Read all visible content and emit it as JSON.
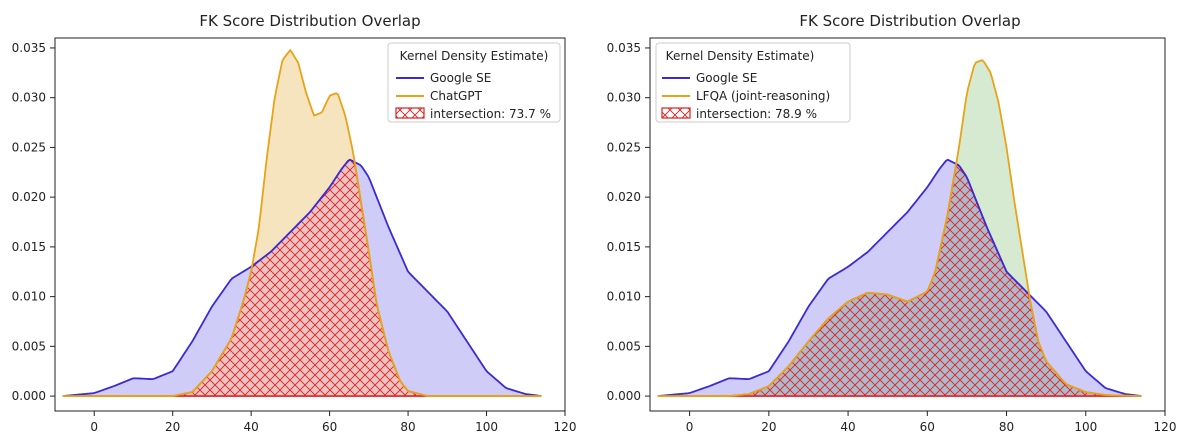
{
  "chart_data": [
    {
      "type": "area",
      "title": "FK Score Distribution Overlap",
      "xlabel": "",
      "ylabel": "",
      "xlim": [
        -10,
        120
      ],
      "ylim": [
        -0.0015,
        0.036
      ],
      "x_ticks": [
        0,
        20,
        40,
        60,
        80,
        100,
        120
      ],
      "y_ticks": [
        0.0,
        0.005,
        0.01,
        0.015,
        0.02,
        0.025,
        0.03,
        0.035
      ],
      "y_tick_labels": [
        "0.000",
        "0.005",
        "0.010",
        "0.015",
        "0.020",
        "0.025",
        "0.030",
        "0.035"
      ],
      "grid": false,
      "legend": {
        "title": "Kernel Density Estimate)",
        "placement": "top-right",
        "entries": [
          "Google SE",
          "ChatGPT",
          "intersection: 73.7 %"
        ]
      },
      "series": [
        {
          "name": "Google SE",
          "color": "#3a2ad8",
          "fill": "#c7c3f6",
          "x": [
            -8,
            0,
            5,
            10,
            15,
            20,
            25,
            30,
            35,
            40,
            45,
            50,
            55,
            60,
            63,
            65,
            68,
            70,
            75,
            80,
            85,
            90,
            95,
            100,
            105,
            110,
            114
          ],
          "y": [
            0.0,
            0.0003,
            0.001,
            0.0018,
            0.0017,
            0.0025,
            0.0055,
            0.009,
            0.0118,
            0.013,
            0.0145,
            0.0165,
            0.0185,
            0.021,
            0.0228,
            0.0238,
            0.0232,
            0.022,
            0.017,
            0.0125,
            0.0105,
            0.0085,
            0.0055,
            0.0025,
            0.0008,
            0.0002,
            0.0
          ]
        },
        {
          "name": "ChatGPT",
          "color": "#e8a317",
          "fill": "#f5dfb4",
          "x": [
            -8,
            20,
            25,
            30,
            35,
            38,
            40,
            42,
            44,
            46,
            48,
            50,
            52,
            54,
            56,
            58,
            60,
            62,
            64,
            66,
            68,
            70,
            72,
            75,
            78,
            80,
            85,
            90,
            100,
            114
          ],
          "y": [
            0.0,
            0.0,
            0.0004,
            0.0025,
            0.0058,
            0.0095,
            0.0125,
            0.017,
            0.024,
            0.03,
            0.0338,
            0.0348,
            0.0335,
            0.0305,
            0.0282,
            0.0285,
            0.0302,
            0.0305,
            0.0282,
            0.0245,
            0.0195,
            0.0145,
            0.0092,
            0.0045,
            0.0015,
            0.0005,
            0.0,
            0.0,
            0.0,
            0.0
          ]
        }
      ],
      "intersection": {
        "label": "intersection: 73.7 %",
        "percent": 73.7,
        "edge_color": "#e02020",
        "hatch_color": "#e02020",
        "fill": "#e9c2c2"
      }
    },
    {
      "type": "area",
      "title": "FK Score Distribution Overlap",
      "xlabel": "",
      "ylabel": "",
      "xlim": [
        -10,
        120
      ],
      "ylim": [
        -0.0015,
        0.036
      ],
      "x_ticks": [
        0,
        20,
        40,
        60,
        80,
        100,
        120
      ],
      "y_ticks": [
        0.0,
        0.005,
        0.01,
        0.015,
        0.02,
        0.025,
        0.03,
        0.035
      ],
      "y_tick_labels": [
        "0.000",
        "0.005",
        "0.010",
        "0.015",
        "0.020",
        "0.025",
        "0.030",
        "0.035"
      ],
      "grid": false,
      "legend": {
        "title": "Kernel Density Estimate)",
        "placement": "top-left",
        "entries": [
          "Google SE",
          "LFQA (joint-reasoning)",
          "intersection: 78.9 %"
        ]
      },
      "series": [
        {
          "name": "Google SE",
          "color": "#3a2ad8",
          "fill": "#c7c3f6",
          "x": [
            -8,
            0,
            5,
            10,
            15,
            20,
            25,
            30,
            35,
            40,
            45,
            50,
            55,
            60,
            63,
            65,
            68,
            70,
            75,
            80,
            85,
            90,
            95,
            100,
            105,
            110,
            114
          ],
          "y": [
            0.0,
            0.0003,
            0.001,
            0.0018,
            0.0017,
            0.0025,
            0.0055,
            0.009,
            0.0118,
            0.013,
            0.0145,
            0.0165,
            0.0185,
            0.021,
            0.0228,
            0.0238,
            0.0232,
            0.022,
            0.017,
            0.0125,
            0.0105,
            0.0085,
            0.0055,
            0.0025,
            0.0008,
            0.0002,
            0.0
          ]
        },
        {
          "name": "LFQA (joint-reasoning)",
          "color": "#e8a317",
          "fill": "#cfe6c9",
          "x": [
            -8,
            10,
            15,
            20,
            25,
            30,
            35,
            40,
            45,
            50,
            55,
            60,
            62,
            65,
            68,
            70,
            72,
            74,
            76,
            78,
            80,
            82,
            84,
            86,
            88,
            90,
            95,
            100,
            105,
            114
          ],
          "y": [
            0.0,
            0.0,
            0.0002,
            0.001,
            0.003,
            0.0055,
            0.0078,
            0.0095,
            0.0104,
            0.0102,
            0.0095,
            0.0105,
            0.0125,
            0.018,
            0.025,
            0.0305,
            0.0335,
            0.0338,
            0.0325,
            0.0295,
            0.025,
            0.0195,
            0.0145,
            0.0095,
            0.0055,
            0.0035,
            0.0012,
            0.0004,
            0.0001,
            0.0
          ]
        }
      ],
      "intersection": {
        "label": "intersection: 78.9 %",
        "percent": 78.9,
        "edge_color": "#e02020",
        "hatch_color": "#e02020",
        "fill": "#a9b8cc"
      }
    }
  ]
}
